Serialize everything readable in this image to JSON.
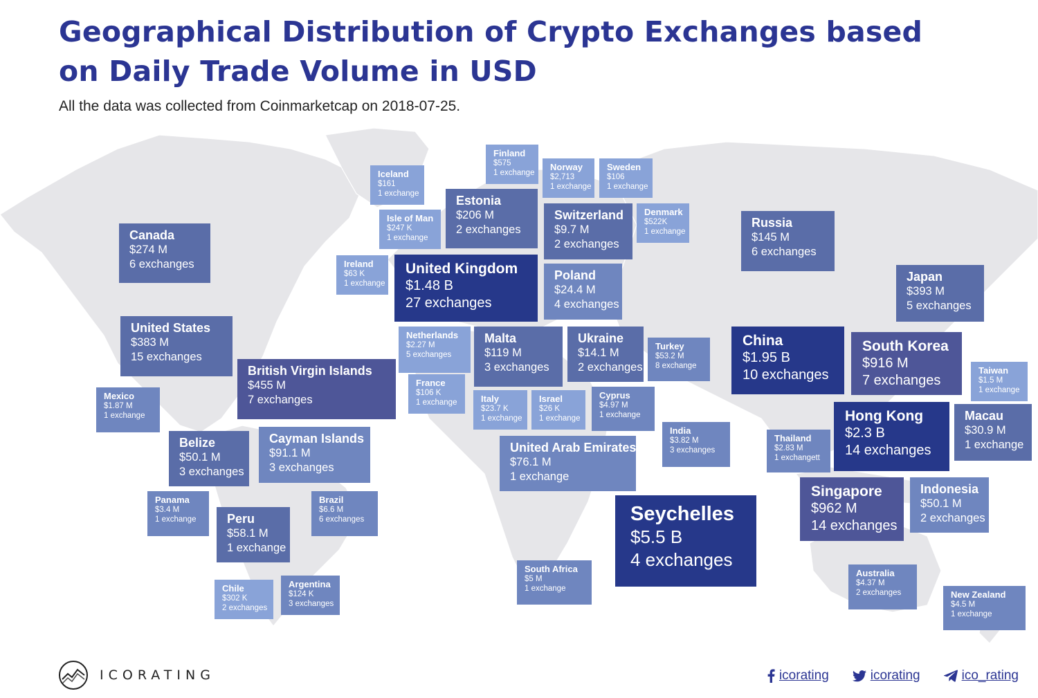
{
  "title": "Geographical Distribution of Crypto Exchanges based on Daily Trade Volume in USD",
  "subtitle": "All the data was collected from Coinmarketcap on 2018-07-25.",
  "colors": {
    "title": "#2b3593",
    "tier1_darkest": "#26388a",
    "tier2_purple": "#4e5698",
    "tier3_mid": "#5a6da8",
    "tier4_light": "#6f86bf",
    "tier5_lightest": "#89a3d8",
    "land": "#e6e6e9"
  },
  "countries": [
    {
      "name": "Canada",
      "volume": "$274 M",
      "exchanges": "6 exchanges"
    },
    {
      "name": "United States",
      "volume": "$383 M",
      "exchanges": "15 exchanges"
    },
    {
      "name": "Mexico",
      "volume": "$1.87 M",
      "exchanges": "1 exchange"
    },
    {
      "name": "Belize",
      "volume": "$50.1 M",
      "exchanges": "3 exchanges"
    },
    {
      "name": "British Virgin Islands",
      "volume": "$455 M",
      "exchanges": "7 exchanges"
    },
    {
      "name": "Cayman Islands",
      "volume": "$91.1 M",
      "exchanges": "3 exchanges"
    },
    {
      "name": "Panama",
      "volume": "$3.4 M",
      "exchanges": "1 exchange"
    },
    {
      "name": "Peru",
      "volume": "$58.1 M",
      "exchanges": "1 exchange"
    },
    {
      "name": "Brazil",
      "volume": "$6.6 M",
      "exchanges": "6 exchanges"
    },
    {
      "name": "Chile",
      "volume": "$302 K",
      "exchanges": "2 exchanges"
    },
    {
      "name": "Argentina",
      "volume": "$124 K",
      "exchanges": "3 exchanges"
    },
    {
      "name": "Iceland",
      "volume": "$161",
      "exchanges": "1 exchange"
    },
    {
      "name": "Isle of Man",
      "volume": "$247 K",
      "exchanges": "1 exchange"
    },
    {
      "name": "Ireland",
      "volume": "$63 K",
      "exchanges": "1 exchange"
    },
    {
      "name": "Finland",
      "volume": "$575",
      "exchanges": "1 exchange"
    },
    {
      "name": "Estonia",
      "volume": "$206 M",
      "exchanges": "2 exchanges"
    },
    {
      "name": "Norway",
      "volume": "$2,713",
      "exchanges": "1 exchange"
    },
    {
      "name": "Sweden",
      "volume": "$106",
      "exchanges": "1 exchange"
    },
    {
      "name": "Switzerland",
      "volume": "$9.7 M",
      "exchanges": "2 exchanges"
    },
    {
      "name": "Denmark",
      "volume": "$522K",
      "exchanges": "1 exchange"
    },
    {
      "name": "United Kingdom",
      "volume": "$1.48 B",
      "exchanges": "27 exchanges"
    },
    {
      "name": "Poland",
      "volume": "$24.4 M",
      "exchanges": "4 exchanges"
    },
    {
      "name": "Netherlands",
      "volume": "$2.27 M",
      "exchanges": "5 exchanges"
    },
    {
      "name": "Malta",
      "volume": "$119 M",
      "exchanges": "3 exchanges"
    },
    {
      "name": "Ukraine",
      "volume": "$14.1 M",
      "exchanges": "2 exchanges"
    },
    {
      "name": "Turkey",
      "volume": "$53.2 M",
      "exchanges": "8 exchange"
    },
    {
      "name": "France",
      "volume": "$106 K",
      "exchanges": "1 exchange"
    },
    {
      "name": "Italy",
      "volume": "$23.7 K",
      "exchanges": "1 exchange"
    },
    {
      "name": "Israel",
      "volume": "$26 K",
      "exchanges": "1 exchange"
    },
    {
      "name": "Cyprus",
      "volume": "$4.97 M",
      "exchanges": "1 exchange"
    },
    {
      "name": "United Arab Emirates",
      "volume": "$76.1 M",
      "exchanges": "1 exchange"
    },
    {
      "name": "India",
      "volume": "$3.82 M",
      "exchanges": "3 exchanges"
    },
    {
      "name": "South Africa",
      "volume": "$5 M",
      "exchanges": "1 exchange"
    },
    {
      "name": "Seychelles",
      "volume": "$5.5 B",
      "exchanges": "4 exchanges"
    },
    {
      "name": "Russia",
      "volume": "$145 M",
      "exchanges": "6 exchanges"
    },
    {
      "name": "Japan",
      "volume": "$393 M",
      "exchanges": "5 exchanges"
    },
    {
      "name": "China",
      "volume": "$1.95 B",
      "exchanges": "10 exchanges"
    },
    {
      "name": "South Korea",
      "volume": "$916 M",
      "exchanges": "7 exchanges"
    },
    {
      "name": "Taiwan",
      "volume": "$1.5 M",
      "exchanges": "1 exchange"
    },
    {
      "name": "Hong Kong",
      "volume": "$2.3 B",
      "exchanges": "14 exchanges"
    },
    {
      "name": "Macau",
      "volume": "$30.9 M",
      "exchanges": "1 exchange"
    },
    {
      "name": "Thailand",
      "volume": "$2.83 M",
      "exchanges": "1 exchangett"
    },
    {
      "name": "Singapore",
      "volume": "$962 M",
      "exchanges": "14 exchanges"
    },
    {
      "name": "Indonesia",
      "volume": "$50.1 M",
      "exchanges": "2 exchanges"
    },
    {
      "name": "Australia",
      "volume": "$4.37 M",
      "exchanges": "2 exchanges"
    },
    {
      "name": "New Zealand",
      "volume": "$4.5 M",
      "exchanges": "1 exchange"
    }
  ],
  "footer": {
    "brand": "ICORATING",
    "logo_icon": "chart-line-logo-icon",
    "socials": [
      {
        "icon": "facebook-icon",
        "label": "icorating"
      },
      {
        "icon": "twitter-icon",
        "label": "icorating"
      },
      {
        "icon": "telegram-icon",
        "label": "ico_rating"
      }
    ]
  }
}
